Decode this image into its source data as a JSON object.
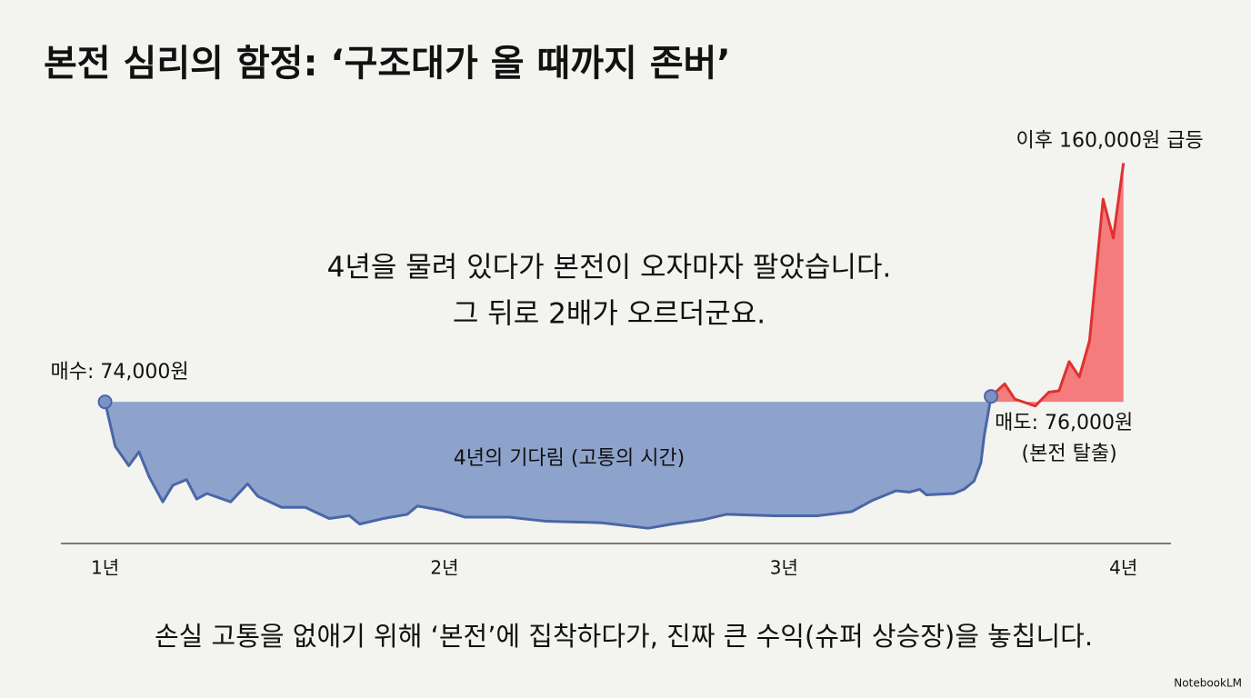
{
  "chart_data": {
    "type": "area",
    "title": "본전 심리의 함정: ‘구조대가 올 때까지 존버’",
    "quote": [
      "4년을 물려 있다가 본전이 오자마자 팔았습니다.",
      "그 뒤로 2배가 오르더군요."
    ],
    "caption": "손실 고통을 없애기 위해 ‘본전’에 집착하다가, 진짜 큰 수익(슈퍼 상승장)을 놓칩니다.",
    "annotations": [
      "매수: 74,000원",
      "매도: 76,000원",
      "(본전 탈출)",
      "이후 160,000원 급등",
      "4년의 기다림 (고통의 시간)"
    ],
    "brand": "NotebookLM",
    "xlim": [
      0.87,
      4.14
    ],
    "xticks": [
      {
        "value": 1,
        "label": "1년"
      },
      {
        "value": 2,
        "label": "2년"
      },
      {
        "value": 3,
        "label": "3년"
      },
      {
        "value": 4,
        "label": "4년"
      }
    ],
    "ylim": [
      23000,
      186000
    ],
    "series": [
      {
        "color": "#4a66a8",
        "fill": "#8ea3cc",
        "x": [
          1.0,
          1.03,
          1.07,
          1.1,
          1.13,
          1.17,
          1.2,
          1.24,
          1.27,
          1.3,
          1.37,
          1.42,
          1.45,
          1.52,
          1.59,
          1.66,
          1.72,
          1.75,
          1.82,
          1.89,
          1.92,
          1.99,
          2.06,
          2.19,
          2.3,
          2.46,
          2.6,
          2.67,
          2.76,
          2.83,
          2.97,
          3.1,
          3.2,
          3.26,
          3.33,
          3.37,
          3.4,
          3.42,
          3.5,
          3.53,
          3.56,
          3.58,
          3.59,
          3.61
        ],
        "values": [
          74000,
          58000,
          51000,
          56000,
          47000,
          38000,
          44000,
          46000,
          39000,
          41000,
          38000,
          44500,
          40000,
          36000,
          36000,
          32000,
          33000,
          30000,
          32000,
          33500,
          36500,
          35000,
          32500,
          32500,
          31000,
          30500,
          28500,
          30000,
          31500,
          33500,
          33000,
          33000,
          34500,
          38500,
          42000,
          41500,
          42500,
          40500,
          41000,
          42500,
          45500,
          52000,
          62000,
          76000
        ]
      },
      {
        "color": "#e03030",
        "fill": "#f47c7c",
        "x": [
          3.61,
          3.65,
          3.68,
          3.74,
          3.78,
          3.81,
          3.84,
          3.87,
          3.9,
          3.94,
          3.97,
          4.0
        ],
        "values": [
          76000,
          80500,
          75000,
          72500,
          77500,
          78000,
          88500,
          83000,
          96000,
          147000,
          133000,
          160000
        ]
      }
    ]
  }
}
